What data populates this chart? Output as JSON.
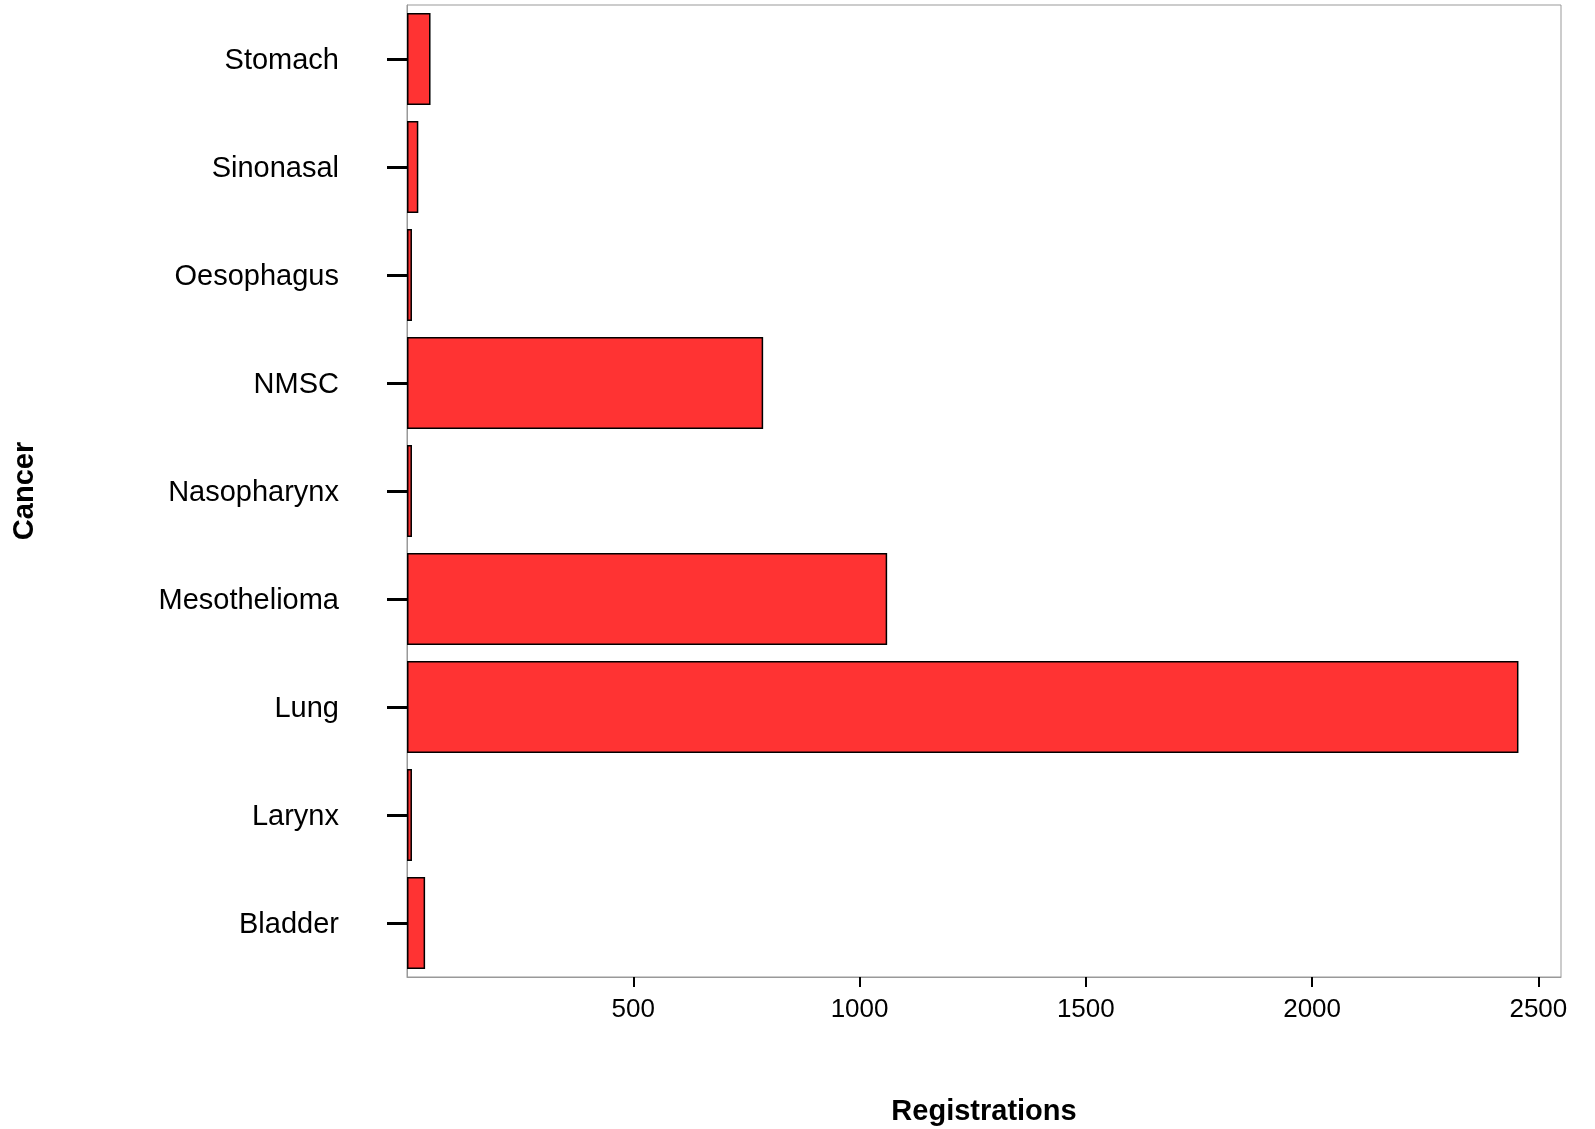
{
  "chart_data": {
    "type": "bar",
    "orientation": "horizontal",
    "xlabel": "Registrations",
    "ylabel": "Cancer",
    "categories": [
      "Stomach",
      "Sinonasal",
      "Oesophagus",
      "NMSC",
      "Nasopharynx",
      "Mesothelioma",
      "Lung",
      "Larynx",
      "Bladder"
    ],
    "values": [
      52,
      25,
      11,
      787,
      11,
      1061,
      2456,
      11,
      40
    ],
    "color": "#ff3333",
    "xlim": [
      0,
      2550
    ],
    "xticks": [
      500,
      1000,
      1500,
      2000,
      2500
    ],
    "grid": false
  }
}
